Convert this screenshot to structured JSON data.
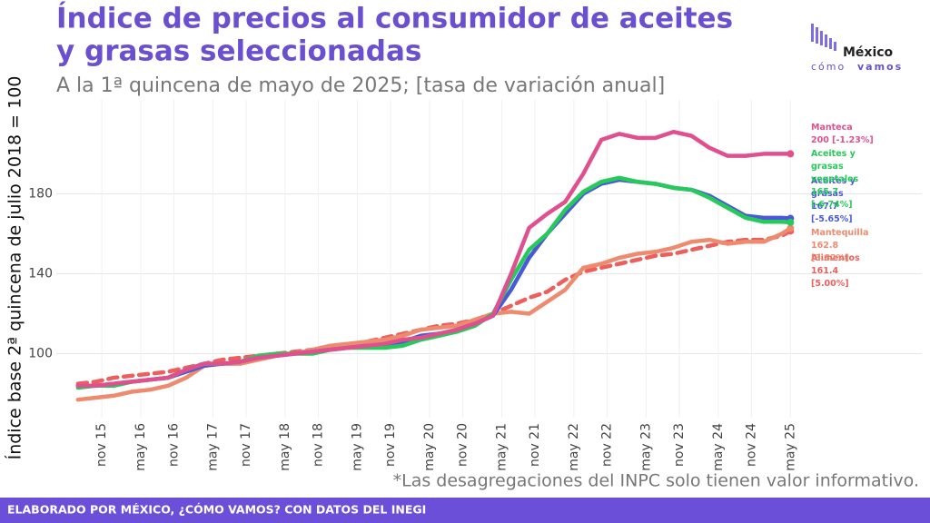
{
  "chart_data": {
    "type": "line",
    "title_lines": [
      "Índice de precios al consumidor de aceites",
      "y grasas seleccionadas"
    ],
    "subtitle": "A la 1ª quincena de mayo de 2025; [tasa de variación anual]",
    "y_label": "Índice base 2ª quincena de julio 2018 = 100",
    "footnote": "*Las desagregaciones del INPC solo tienen valor informativo.",
    "footer": "ELABORADO POR MÉXICO, ¿CÓMO VAMOS? CON DATOS DEL INEGI",
    "logo": [
      "México",
      "cómo",
      "vamos"
    ],
    "grid": true,
    "xlim": [
      2015.2,
      2027.19
    ],
    "ylim": [
      68,
      227
    ],
    "yticks": [
      100,
      140,
      180
    ],
    "xticks": [
      {
        "value": 2015.83,
        "label": "nov 15"
      },
      {
        "value": 2016.37,
        "label": "may 16"
      },
      {
        "value": 2016.83,
        "label": "nov 16"
      },
      {
        "value": 2017.37,
        "label": "may 17"
      },
      {
        "value": 2017.83,
        "label": "nov 17"
      },
      {
        "value": 2018.37,
        "label": "may 18"
      },
      {
        "value": 2018.83,
        "label": "nov 18"
      },
      {
        "value": 2019.37,
        "label": "may 19"
      },
      {
        "value": 2019.83,
        "label": "nov 19"
      },
      {
        "value": 2020.37,
        "label": "may 20"
      },
      {
        "value": 2020.83,
        "label": "nov 20"
      },
      {
        "value": 2021.37,
        "label": "may 21"
      },
      {
        "value": 2021.83,
        "label": "nov 21"
      },
      {
        "value": 2022.37,
        "label": "may 22"
      },
      {
        "value": 2022.83,
        "label": "nov 22"
      },
      {
        "value": 2023.37,
        "label": "may 23"
      },
      {
        "value": 2023.83,
        "label": "nov 23"
      },
      {
        "value": 2024.37,
        "label": "may 24"
      },
      {
        "value": 2024.83,
        "label": "nov 24"
      },
      {
        "value": 2025.37,
        "label": "may 25"
      }
    ],
    "x": [
      2015.5,
      2015.75,
      2016,
      2016.25,
      2016.5,
      2016.75,
      2017,
      2017.25,
      2017.5,
      2017.75,
      2018,
      2018.25,
      2018.5,
      2018.75,
      2019,
      2019.25,
      2019.5,
      2019.75,
      2020,
      2020.25,
      2020.5,
      2020.75,
      2021,
      2021.25,
      2021.5,
      2021.75,
      2022,
      2022.25,
      2022.5,
      2022.75,
      2023,
      2023.25,
      2023.5,
      2023.75,
      2024,
      2024.25,
      2024.5,
      2024.75,
      2025,
      2025.25,
      2025.37
    ],
    "series": [
      {
        "name": "Alimentos",
        "end_label": "161.4 [5.00%]",
        "color": "#ec5f5c",
        "dashed": true,
        "values": [
          85,
          86,
          88,
          89,
          90,
          91,
          93,
          95,
          97,
          98,
          99,
          100,
          101,
          102,
          103,
          104,
          106,
          108,
          110,
          112,
          114,
          115,
          117,
          120,
          124,
          128,
          131,
          137,
          141,
          143,
          145,
          147,
          149,
          150,
          152,
          154,
          156,
          157,
          157,
          159,
          161.4
        ]
      },
      {
        "name": "Mantequilla",
        "end_label": "162.8 [3.82%]",
        "color": "#ee8a6d",
        "values": [
          77,
          78,
          79,
          81,
          82,
          84,
          88,
          94,
          95,
          95,
          97,
          99,
          100,
          102,
          104,
          105,
          106,
          107,
          109,
          112,
          113,
          114,
          117,
          120,
          121,
          120,
          126,
          132,
          143,
          145,
          148,
          150,
          151,
          153,
          156,
          157,
          155,
          156,
          156,
          160,
          162.8
        ]
      },
      {
        "name": "Aceites y grasas",
        "end_label": "167.7 [-5.65%]",
        "color": "#4a5ad6",
        "values": [
          84,
          84,
          85,
          86,
          87,
          88,
          91,
          94,
          95,
          96,
          98,
          99,
          100,
          101,
          102,
          103,
          104,
          104,
          106,
          109,
          110,
          112,
          115,
          119,
          132,
          148,
          160,
          170,
          180,
          185,
          187,
          186,
          185,
          183,
          182,
          179,
          174,
          169,
          168,
          168,
          167.7
        ]
      },
      {
        "name": "Aceites y grasas vegetales",
        "end_label": "165.7 [-6.74%]",
        "color": "#27c95a",
        "values": [
          83,
          84,
          84,
          86,
          87,
          88,
          92,
          95,
          95,
          96,
          99,
          100,
          100,
          100,
          102,
          103,
          103,
          103,
          104,
          107,
          109,
          111,
          114,
          120,
          137,
          152,
          160,
          172,
          181,
          186,
          188,
          186,
          185,
          183,
          182,
          178,
          173,
          168,
          166,
          166,
          165.7
        ]
      },
      {
        "name": "Manteca",
        "end_label": "200 [-1.23%]",
        "color": "#e0508e",
        "values": [
          84,
          84,
          85,
          86,
          87,
          88,
          92,
          95,
          95,
          96,
          98,
          99,
          100,
          101,
          102,
          103,
          104,
          105,
          107,
          108,
          110,
          112,
          115,
          119,
          140,
          163,
          170,
          176,
          190,
          207,
          210,
          208,
          208,
          211,
          209,
          203,
          199,
          199,
          200,
          200,
          200
        ]
      }
    ]
  }
}
